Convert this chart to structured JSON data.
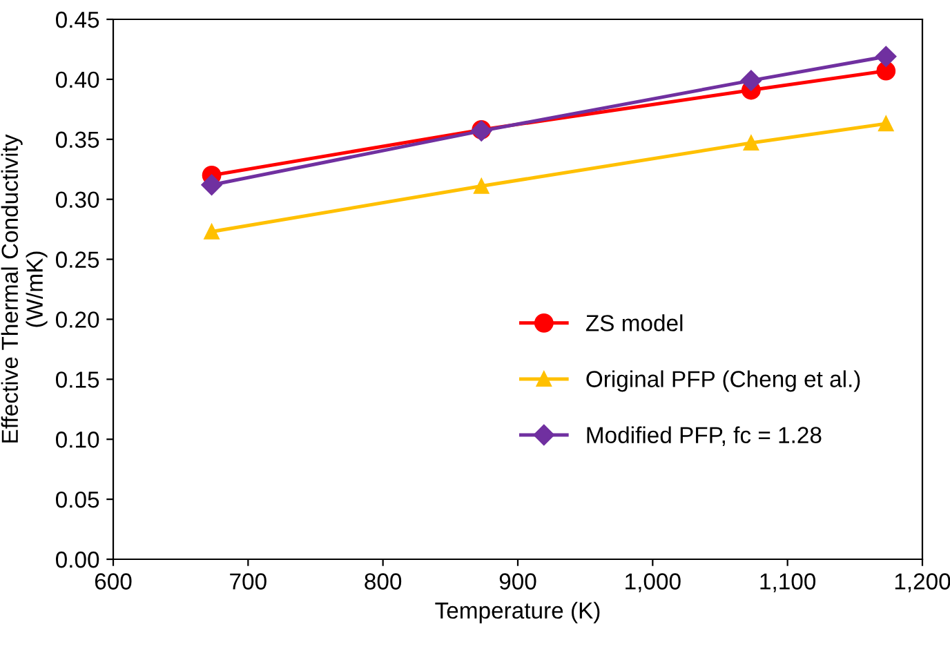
{
  "chart_data": {
    "type": "line",
    "xlabel": "Temperature (K)",
    "ylabel": "Effective Thermal Conductivity\n(W/mK)",
    "x": [
      673,
      873,
      1073,
      1173
    ],
    "series": [
      {
        "name": "ZS model",
        "color": "#ff0000",
        "marker": "circle",
        "values": [
          0.32,
          0.358,
          0.391,
          0.407
        ]
      },
      {
        "name": "Original PFP (Cheng et al.)",
        "color": "#ffc000",
        "marker": "triangle",
        "values": [
          0.273,
          0.311,
          0.347,
          0.363
        ]
      },
      {
        "name": "Modified PFP, fc = 1.28",
        "color": "#7030a0",
        "marker": "diamond",
        "values": [
          0.312,
          0.357,
          0.399,
          0.419
        ]
      }
    ],
    "xlim": [
      600,
      1200
    ],
    "xticks": [
      600,
      700,
      800,
      900,
      {
        "value": 1000,
        "label": "1,000"
      },
      {
        "value": 1100,
        "label": "1,100"
      },
      {
        "value": 1200,
        "label": "1,200"
      }
    ],
    "ylim": [
      0,
      0.45
    ],
    "yticks": [
      {
        "value": 0,
        "label": "0.00"
      },
      {
        "value": 0.05,
        "label": "0.05"
      },
      {
        "value": 0.1,
        "label": "0.10"
      },
      {
        "value": 0.15,
        "label": "0.15"
      },
      {
        "value": 0.2,
        "label": "0.20"
      },
      {
        "value": 0.25,
        "label": "0.25"
      },
      {
        "value": 0.3,
        "label": "0.30"
      },
      {
        "value": 0.35,
        "label": "0.35"
      },
      {
        "value": 0.4,
        "label": "0.40"
      },
      {
        "value": 0.45,
        "label": "0.45"
      }
    ],
    "grid": false,
    "legend": "right",
    "line_style": "solid"
  }
}
